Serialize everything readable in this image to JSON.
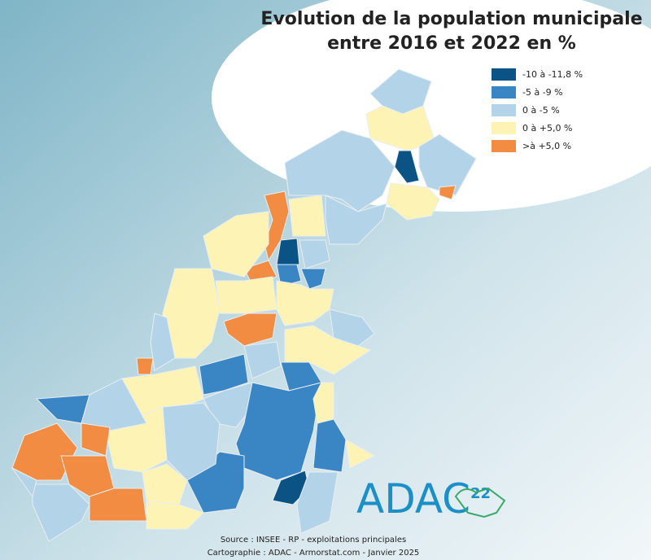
{
  "title": {
    "line1": "Evolution de la population municipale",
    "line2": "entre 2016 et 2022 en %"
  },
  "legend": [
    {
      "label": "-10 à -11,8 %",
      "color": "#0b5384"
    },
    {
      "label": "-5 à -9 %",
      "color": "#3a86c4"
    },
    {
      "label": "0 à -5 %",
      "color": "#b3d3e8"
    },
    {
      "label": "0 à +5,0 %",
      "color": "#fdf3b4"
    },
    {
      "label": ">à +5,0 %",
      "color": "#f28c42"
    }
  ],
  "logo": {
    "name": "ADAC",
    "number": "22"
  },
  "source": {
    "line1": "Source : INSEE - RP - exploitations principales",
    "line2": "Cartographie : ADAC - Armorstat.com - Janvier 2025"
  }
}
